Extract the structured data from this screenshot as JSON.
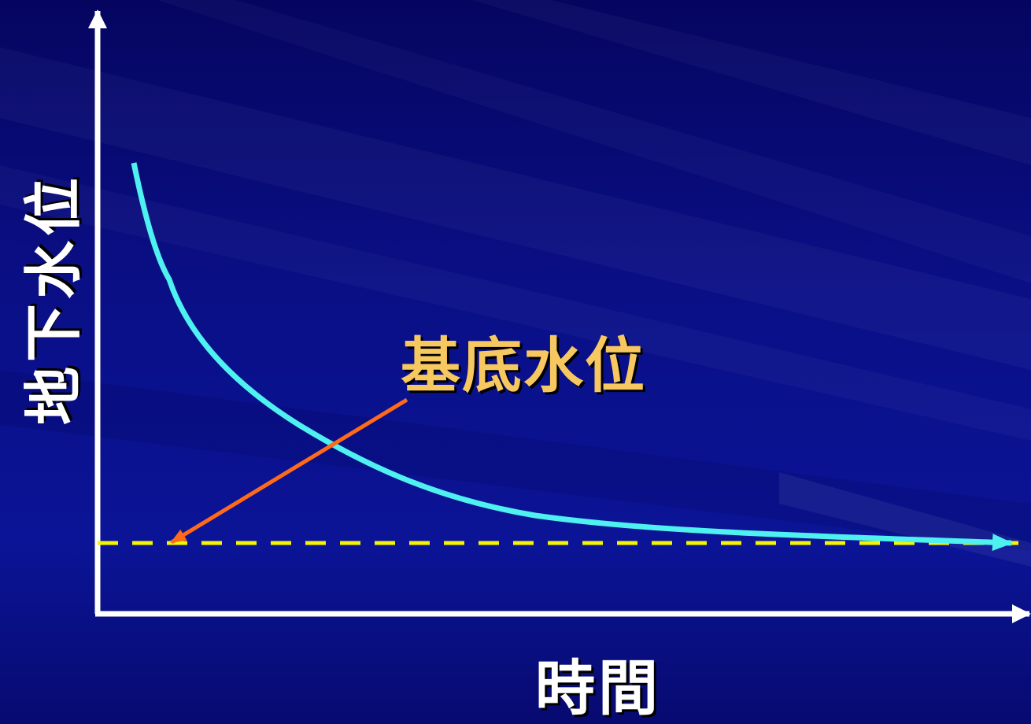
{
  "diagram": {
    "y_axis_label": "地下水位",
    "x_axis_label": "時間",
    "baseflow_label": "基底水位"
  },
  "colors": {
    "background": "#0a0f86",
    "axes": "#ffffff",
    "recession_curve": "#4ff0f0",
    "base_level_line": "#f5f500",
    "pointer_arrow": "#ff6a1a",
    "baseflow_label_text": "#f7c860",
    "label_text": "#ffffff"
  }
}
